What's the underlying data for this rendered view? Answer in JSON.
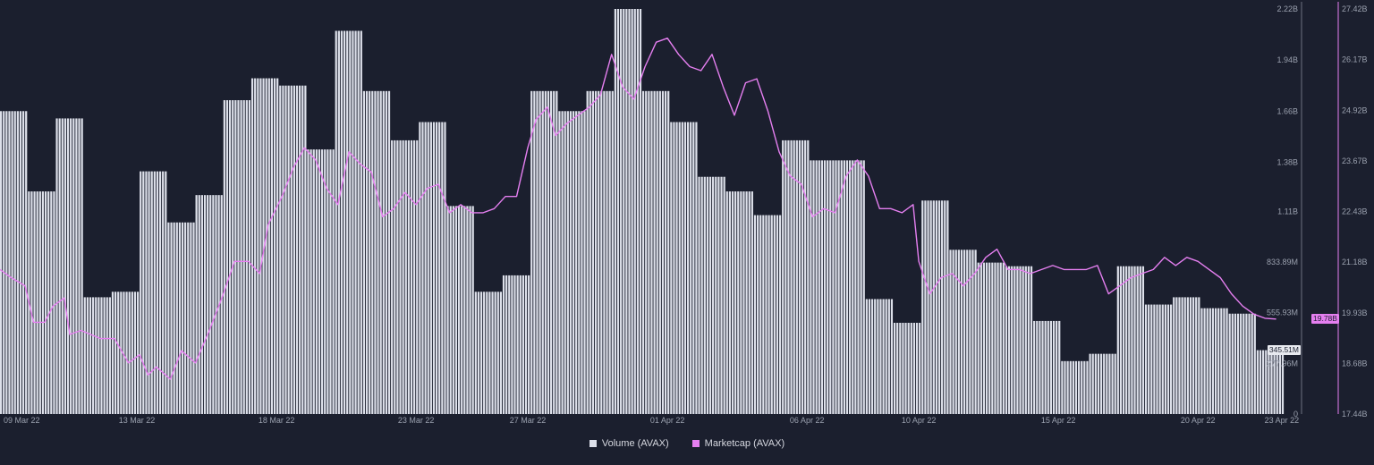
{
  "colors": {
    "background": "#1b1f2e",
    "volume": "#dde0ea",
    "volume_edge": "#2a2e3c",
    "marketcap": "#e57ff0",
    "grid": "#2b3040",
    "volume_badge": "#e7e9ef",
    "marketcap_badge": "#e57ff0"
  },
  "legend": {
    "volume_label": "Volume (AVAX)",
    "marketcap_label": "Marketcap (AVAX)"
  },
  "badges": {
    "volume_last": "345.51M",
    "marketcap_last": "19.78B"
  },
  "chart_data": {
    "type": "bar+line",
    "x_ticks": [
      "09 Mar 22",
      "13 Mar 22",
      "18 Mar 22",
      "23 Mar 22",
      "27 Mar 22",
      "01 Apr 22",
      "06 Apr 22",
      "10 Apr 22",
      "15 Apr 22",
      "20 Apr 22",
      "23 Apr 22"
    ],
    "x_tick_days": [
      1,
      5,
      10,
      15,
      19,
      24,
      29,
      33,
      38,
      43,
      46
    ],
    "x_range_days": [
      0.1,
      46.1
    ],
    "left_axis": {
      "ticks": [
        "2.22B",
        "1.94B",
        "1.66B",
        "1.38B",
        "1.11B",
        "833.89M",
        "555.93M",
        "277.96M",
        "0"
      ],
      "values": [
        2.22,
        1.94,
        1.66,
        1.38,
        1.11,
        0.83389,
        0.55593,
        0.27796,
        0
      ],
      "range": [
        0,
        2.22
      ],
      "unit": "B"
    },
    "right_axis": {
      "ticks": [
        "27.42B",
        "26.17B",
        "24.92B",
        "23.67B",
        "22.43B",
        "21.18B",
        "19.93B",
        "18.68B",
        "17.44B"
      ],
      "values": [
        27.42,
        26.17,
        24.92,
        23.67,
        22.43,
        21.18,
        19.93,
        18.68,
        17.44
      ],
      "range": [
        17.44,
        27.42
      ],
      "unit": "B"
    },
    "series": [
      {
        "name": "Volume (AVAX)",
        "kind": "bar",
        "axis": "left",
        "values": [
          1.66,
          1.22,
          1.62,
          0.64,
          0.67,
          1.33,
          1.05,
          1.2,
          1.72,
          1.84,
          1.8,
          1.45,
          2.1,
          1.77,
          1.5,
          1.6,
          1.14,
          0.67,
          0.76,
          1.77,
          1.66,
          1.77,
          2.22,
          1.77,
          1.6,
          1.3,
          1.22,
          1.09,
          1.5,
          1.39,
          1.39,
          0.63,
          0.5,
          1.17,
          0.9,
          0.83,
          0.81,
          0.51,
          0.29,
          0.33,
          0.81,
          0.6,
          0.64,
          0.58,
          0.55,
          0.35
        ]
      },
      {
        "name": "Marketcap (AVAX)",
        "kind": "line",
        "axis": "right",
        "points": [
          [
            0.1,
            21.0
          ],
          [
            0.5,
            20.8
          ],
          [
            1.0,
            20.6
          ],
          [
            1.3,
            19.7
          ],
          [
            1.7,
            19.7
          ],
          [
            2.0,
            20.1
          ],
          [
            2.4,
            20.3
          ],
          [
            2.6,
            19.4
          ],
          [
            3.0,
            19.5
          ],
          [
            3.7,
            19.3
          ],
          [
            4.2,
            19.3
          ],
          [
            4.7,
            18.7
          ],
          [
            5.1,
            18.9
          ],
          [
            5.4,
            18.4
          ],
          [
            5.7,
            18.6
          ],
          [
            6.2,
            18.3
          ],
          [
            6.6,
            19.0
          ],
          [
            7.1,
            18.7
          ],
          [
            7.6,
            19.5
          ],
          [
            8.1,
            20.4
          ],
          [
            8.5,
            21.2
          ],
          [
            9.0,
            21.2
          ],
          [
            9.4,
            20.9
          ],
          [
            9.7,
            22.1
          ],
          [
            10.2,
            22.8
          ],
          [
            10.6,
            23.5
          ],
          [
            11.0,
            24.0
          ],
          [
            11.4,
            23.7
          ],
          [
            11.8,
            23.0
          ],
          [
            12.2,
            22.6
          ],
          [
            12.6,
            23.9
          ],
          [
            13.0,
            23.6
          ],
          [
            13.4,
            23.4
          ],
          [
            13.8,
            22.3
          ],
          [
            14.2,
            22.5
          ],
          [
            14.6,
            22.9
          ],
          [
            15.0,
            22.6
          ],
          [
            15.4,
            23.0
          ],
          [
            15.8,
            23.1
          ],
          [
            16.2,
            22.4
          ],
          [
            16.6,
            22.6
          ],
          [
            17.0,
            22.4
          ],
          [
            17.4,
            22.4
          ],
          [
            17.8,
            22.5
          ],
          [
            18.2,
            22.8
          ],
          [
            18.6,
            22.8
          ],
          [
            19.0,
            24.0
          ],
          [
            19.3,
            24.7
          ],
          [
            19.7,
            25.0
          ],
          [
            20.0,
            24.3
          ],
          [
            20.4,
            24.6
          ],
          [
            20.8,
            24.8
          ],
          [
            21.2,
            25.0
          ],
          [
            21.6,
            25.3
          ],
          [
            22.0,
            26.3
          ],
          [
            22.4,
            25.5
          ],
          [
            22.8,
            25.2
          ],
          [
            23.2,
            26.0
          ],
          [
            23.6,
            26.6
          ],
          [
            24.0,
            26.7
          ],
          [
            24.4,
            26.3
          ],
          [
            24.8,
            26.0
          ],
          [
            25.2,
            25.9
          ],
          [
            25.6,
            26.3
          ],
          [
            26.0,
            25.5
          ],
          [
            26.4,
            24.8
          ],
          [
            26.8,
            25.6
          ],
          [
            27.2,
            25.7
          ],
          [
            27.6,
            24.9
          ],
          [
            28.0,
            23.9
          ],
          [
            28.4,
            23.3
          ],
          [
            28.8,
            23.1
          ],
          [
            29.2,
            22.3
          ],
          [
            29.6,
            22.5
          ],
          [
            30.0,
            22.4
          ],
          [
            30.4,
            23.3
          ],
          [
            30.8,
            23.7
          ],
          [
            31.2,
            23.3
          ],
          [
            31.6,
            22.5
          ],
          [
            32.0,
            22.5
          ],
          [
            32.4,
            22.4
          ],
          [
            32.8,
            22.6
          ],
          [
            33.0,
            21.2
          ],
          [
            33.4,
            20.4
          ],
          [
            33.8,
            20.8
          ],
          [
            34.2,
            20.9
          ],
          [
            34.6,
            20.6
          ],
          [
            35.0,
            20.9
          ],
          [
            35.4,
            21.3
          ],
          [
            35.8,
            21.5
          ],
          [
            36.2,
            21.0
          ],
          [
            36.6,
            21.0
          ],
          [
            37.0,
            20.9
          ],
          [
            37.4,
            21.0
          ],
          [
            37.8,
            21.1
          ],
          [
            38.2,
            21.0
          ],
          [
            38.6,
            21.0
          ],
          [
            39.0,
            21.0
          ],
          [
            39.4,
            21.1
          ],
          [
            39.8,
            20.4
          ],
          [
            40.2,
            20.6
          ],
          [
            40.6,
            20.8
          ],
          [
            41.0,
            20.9
          ],
          [
            41.4,
            21.0
          ],
          [
            41.8,
            21.3
          ],
          [
            42.2,
            21.1
          ],
          [
            42.6,
            21.3
          ],
          [
            43.0,
            21.2
          ],
          [
            43.4,
            21.0
          ],
          [
            43.8,
            20.8
          ],
          [
            44.2,
            20.4
          ],
          [
            44.6,
            20.1
          ],
          [
            45.0,
            19.9
          ],
          [
            45.4,
            19.8
          ],
          [
            45.8,
            19.78
          ]
        ]
      }
    ],
    "grid": false,
    "legend_position": "bottom-center"
  }
}
